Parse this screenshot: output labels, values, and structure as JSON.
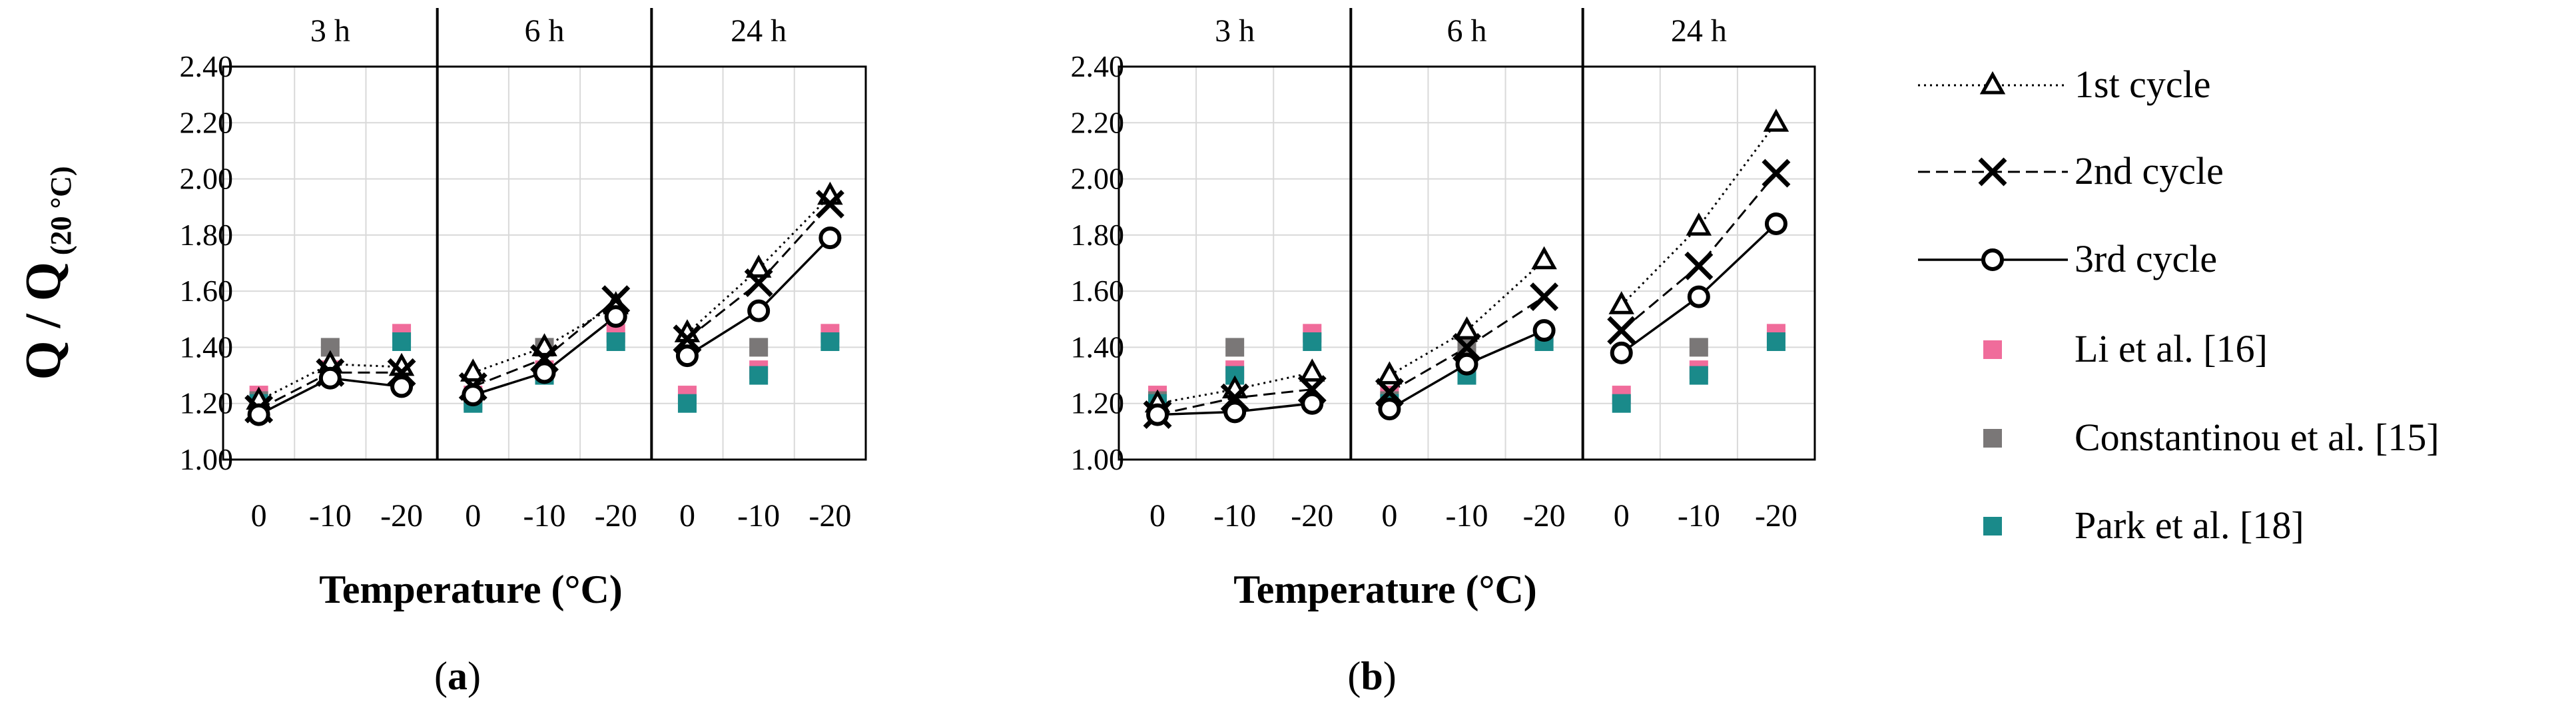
{
  "figure": {
    "ylabel_main": "Q / Q",
    "ylabel_sub": "(20 °C)"
  },
  "legend": {
    "items": [
      {
        "label": "1st cycle",
        "marker": "triangle",
        "line": "dotted"
      },
      {
        "label": "2nd cycle",
        "marker": "cross",
        "line": "dashed"
      },
      {
        "label": "3rd cycle",
        "marker": "circle",
        "line": "solid"
      },
      {
        "label": "Li et al. [16]",
        "marker": "square",
        "color": "#f06c9b"
      },
      {
        "label": "Constantinou et al. [15]",
        "marker": "square",
        "color": "#7a7777"
      },
      {
        "label": "Park et al. [18]",
        "marker": "square",
        "color": "#1a8a8a"
      }
    ]
  },
  "colors": {
    "li": "#f06c9b",
    "constantinou": "#7a7777",
    "park": "#1a8a8a",
    "line": "#000000",
    "grid": "#d9d9d9"
  },
  "chart_data": [
    {
      "type": "line",
      "panel_label": "(a)",
      "panel_letter": "a",
      "xlabel": "Temperature (°C)",
      "ylabel": "Q / Q (20 °C)",
      "ylim": [
        1.0,
        2.4
      ],
      "yticks": [
        "1.00",
        "1.20",
        "1.40",
        "1.60",
        "1.80",
        "2.00",
        "2.20",
        "2.40"
      ],
      "groups": [
        "3 h",
        "6 h",
        "24 h"
      ],
      "categories": [
        "0",
        "-10",
        "-20"
      ],
      "series": [
        {
          "name": "1st cycle",
          "values": [
            [
              1.21,
              1.34,
              1.33
            ],
            [
              1.31,
              1.4,
              1.55
            ],
            [
              1.45,
              1.68,
              1.94
            ]
          ]
        },
        {
          "name": "2nd cycle",
          "values": [
            [
              1.18,
              1.31,
              1.31
            ],
            [
              1.26,
              1.36,
              1.57
            ],
            [
              1.43,
              1.63,
              1.91
            ]
          ]
        },
        {
          "name": "3rd cycle",
          "values": [
            [
              1.16,
              1.29,
              1.26
            ],
            [
              1.23,
              1.31,
              1.51
            ],
            [
              1.37,
              1.53,
              1.79
            ]
          ]
        },
        {
          "name": "Li et al. [16]",
          "values": [
            [
              1.23,
              1.32,
              1.45
            ],
            [
              1.23,
              1.32,
              1.45
            ],
            [
              1.23,
              1.32,
              1.45
            ]
          ]
        },
        {
          "name": "Constantinou et al. [15]",
          "values": [
            [
              1.21,
              1.4,
              null
            ],
            [
              1.21,
              1.4,
              null
            ],
            [
              null,
              1.4,
              null
            ]
          ]
        },
        {
          "name": "Park et al. [18]",
          "values": [
            [
              1.2,
              1.3,
              1.42
            ],
            [
              1.2,
              1.3,
              1.42
            ],
            [
              1.2,
              1.3,
              1.42
            ]
          ]
        }
      ]
    },
    {
      "type": "line",
      "panel_label": "(b)",
      "panel_letter": "b",
      "xlabel": "Temperature (°C)",
      "ylabel": "Q / Q (20 °C)",
      "ylim": [
        1.0,
        2.4
      ],
      "yticks": [
        "1.00",
        "1.20",
        "1.40",
        "1.60",
        "1.80",
        "2.00",
        "2.20",
        "2.40"
      ],
      "groups": [
        "3 h",
        "6 h",
        "24 h"
      ],
      "categories": [
        "0",
        "-10",
        "-20"
      ],
      "series": [
        {
          "name": "1st cycle",
          "values": [
            [
              1.2,
              1.25,
              1.31
            ],
            [
              1.3,
              1.46,
              1.71
            ],
            [
              1.55,
              1.83,
              2.2
            ]
          ]
        },
        {
          "name": "2nd cycle",
          "values": [
            [
              1.16,
              1.22,
              1.25
            ],
            [
              1.24,
              1.4,
              1.58
            ],
            [
              1.46,
              1.69,
              2.02
            ]
          ]
        },
        {
          "name": "3rd cycle",
          "values": [
            [
              1.16,
              1.17,
              1.2
            ],
            [
              1.18,
              1.34,
              1.46
            ],
            [
              1.38,
              1.58,
              1.84
            ]
          ]
        },
        {
          "name": "Li et al. [16]",
          "values": [
            [
              1.23,
              1.32,
              1.45
            ],
            [
              1.23,
              1.32,
              1.45
            ],
            [
              1.23,
              1.32,
              1.45
            ]
          ]
        },
        {
          "name": "Constantinou et al. [15]",
          "values": [
            [
              1.21,
              1.4,
              null
            ],
            [
              1.21,
              1.4,
              null
            ],
            [
              null,
              1.4,
              null
            ]
          ]
        },
        {
          "name": "Park et al. [18]",
          "values": [
            [
              1.2,
              1.3,
              1.42
            ],
            [
              1.2,
              1.3,
              1.42
            ],
            [
              1.2,
              1.3,
              1.42
            ]
          ]
        }
      ]
    }
  ]
}
